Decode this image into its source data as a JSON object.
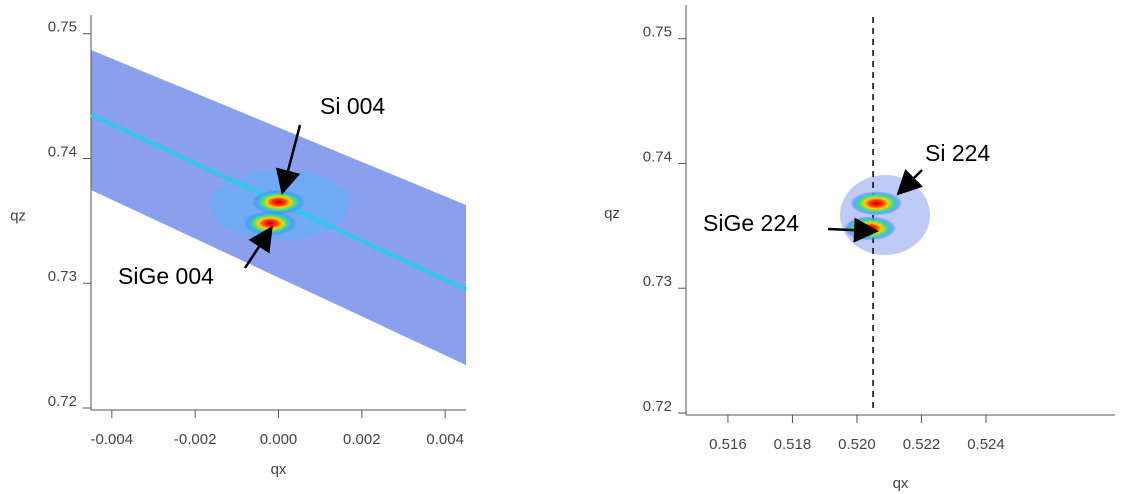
{
  "chart_data": [
    {
      "type": "map",
      "xlabel": "qx",
      "ylabel": "qz",
      "xlim": [
        -0.0045,
        0.0045
      ],
      "ylim": [
        0.72,
        0.7515
      ],
      "xticks": [
        -0.004,
        -0.002,
        {
          "value": 0,
          "label": "0.000"
        },
        0.002,
        0.004
      ],
      "yticks": [
        0.72,
        0.73,
        0.74,
        0.75
      ],
      "streak": {
        "x": [
          -0.0045,
          0.0045
        ],
        "y": [
          0.7435,
          0.7295
        ]
      },
      "peaks": {
        "x": [
          0.0,
          -0.0002
        ],
        "y": [
          0.7365,
          0.7348
        ]
      },
      "annotations": [
        "Si 004",
        "SiGe 004"
      ]
    },
    {
      "type": "map",
      "xlabel": "qx",
      "ylabel": "qz",
      "xlim": [
        0.5147,
        0.528
      ],
      "ylim": [
        0.72,
        0.7527
      ],
      "xticks": [
        0.516,
        0.518,
        {
          "value": 0.52,
          "label": "0.520"
        },
        0.522,
        0.524
      ],
      "yticks": [
        0.72,
        0.73,
        0.74,
        0.75
      ],
      "vline": 0.5205,
      "peaks": {
        "x": [
          0.5206,
          0.5204
        ],
        "y": [
          0.7368,
          0.7348
        ]
      },
      "annotations": [
        "Si 224",
        "SiGe 224"
      ]
    }
  ]
}
